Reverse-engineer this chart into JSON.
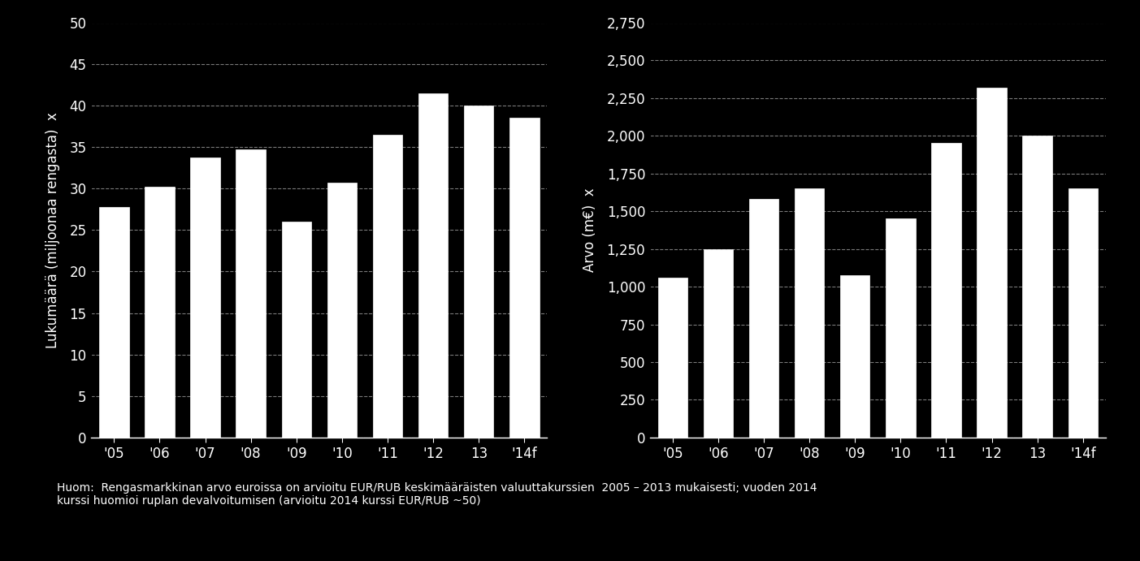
{
  "chart1": {
    "categories": [
      "'05",
      "'06",
      "'07",
      "'08",
      "'09",
      "'10",
      "'11",
      "'12",
      "13",
      "'14f"
    ],
    "values": [
      27.8,
      30.2,
      33.7,
      34.7,
      26.0,
      30.7,
      36.5,
      41.5,
      40.0,
      38.5
    ],
    "ylabel": "Lukumäärä (miljoonaa rengasta)  x",
    "ylim": [
      0,
      50
    ],
    "yticks": [
      0,
      5,
      10,
      15,
      20,
      25,
      30,
      35,
      40,
      45,
      50
    ]
  },
  "chart2": {
    "categories": [
      "'05",
      "'06",
      "'07",
      "'08",
      "'09",
      "'10",
      "'11",
      "'12",
      "13",
      "'14f"
    ],
    "values": [
      1060,
      1250,
      1580,
      1650,
      1075,
      1450,
      1950,
      2320,
      2000,
      1650
    ],
    "ylabel": "Arvo (m€)  x",
    "ylim": [
      0,
      2750
    ],
    "yticks": [
      0,
      250,
      500,
      750,
      1000,
      1250,
      1500,
      1750,
      2000,
      2250,
      2500,
      2750
    ]
  },
  "bar_color": "#ffffff",
  "bar_edge_color": "#ffffff",
  "background_color": "#000000",
  "text_color": "#ffffff",
  "grid_color": "#888888",
  "footnote_line1": "Huom:  Rengasmarkkinan arvo euroissa on arvioitu EUR/RUB keskimääräisten valuuttakurssien  2005 – 2013 mukaisesti; vuoden 2014",
  "footnote_line2": "kurssi huomioi ruplan devalvoitumisen (arvioitu 2014 kurssi EUR/RUB ~50)",
  "footnote_fontsize": 10,
  "tick_fontsize": 12,
  "ylabel_fontsize": 12
}
